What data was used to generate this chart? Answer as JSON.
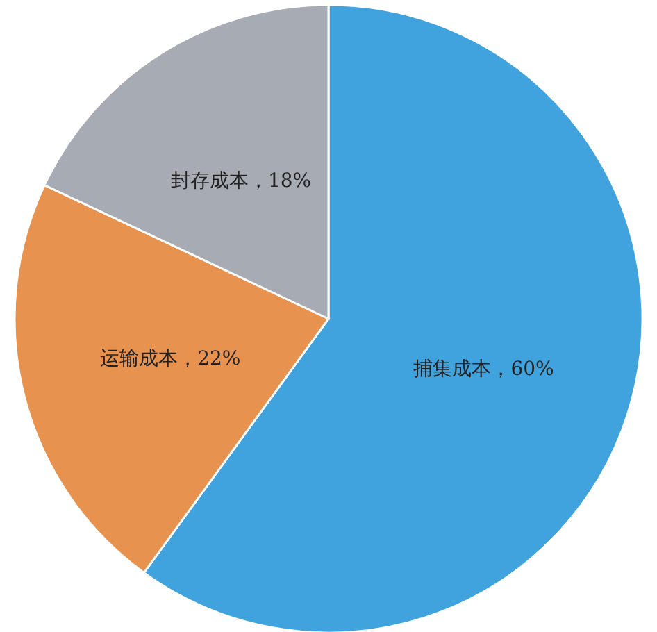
{
  "chart_data": {
    "type": "pie",
    "categories": [
      "捕集成本",
      "运输成本",
      "封存成本"
    ],
    "values": [
      60,
      22,
      18
    ],
    "value_labels": [
      "60%",
      "22%",
      "18%"
    ],
    "colors": [
      "#41a3dd",
      "#e8924f",
      "#a7abb3"
    ]
  }
}
